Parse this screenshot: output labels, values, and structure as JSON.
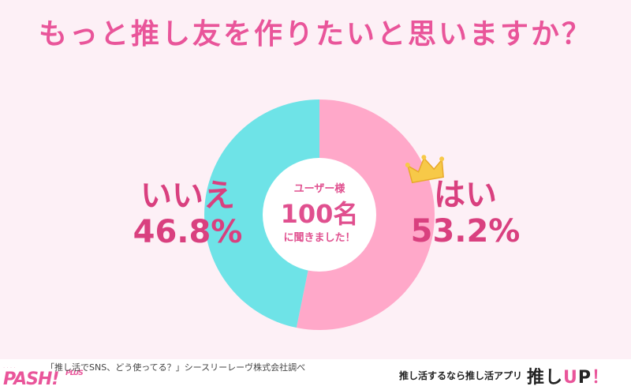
{
  "title": "もっと推し友を作りたいと思いますか？",
  "center": {
    "line1": "ユーザー様",
    "line2": "100名",
    "line3": "に聞きました！"
  },
  "chart_data": {
    "type": "pie",
    "title": "もっと推し友を作りたいと思いますか？",
    "slices": [
      {
        "label": "はい",
        "value": 53.2,
        "value_label": "53.2%",
        "color": "#ffa8c9"
      },
      {
        "label": "いいえ",
        "value": 46.8,
        "value_label": "46.8%",
        "color": "#6ee3e7"
      }
    ],
    "donut": true
  },
  "colors": {
    "accent": "#e9559a",
    "label": "#d9407f",
    "background": "#fdf0f6",
    "yes_slice": "#ffa8c9",
    "no_slice": "#6ee3e7",
    "crown": "#f7c948"
  },
  "footer": {
    "source": "「推し活でSNS、どう使ってる？」シースリーレーヴ株式会社調べ",
    "promo": "推し活するなら推し活アプリ",
    "app_logo_a": "推し",
    "app_logo_b": "U",
    "app_logo_c": "P",
    "app_logo_d": "！",
    "pash_logo": "PASH! ",
    "pash_plus": "PLUS"
  },
  "icons": {
    "crown": "crown-icon"
  }
}
